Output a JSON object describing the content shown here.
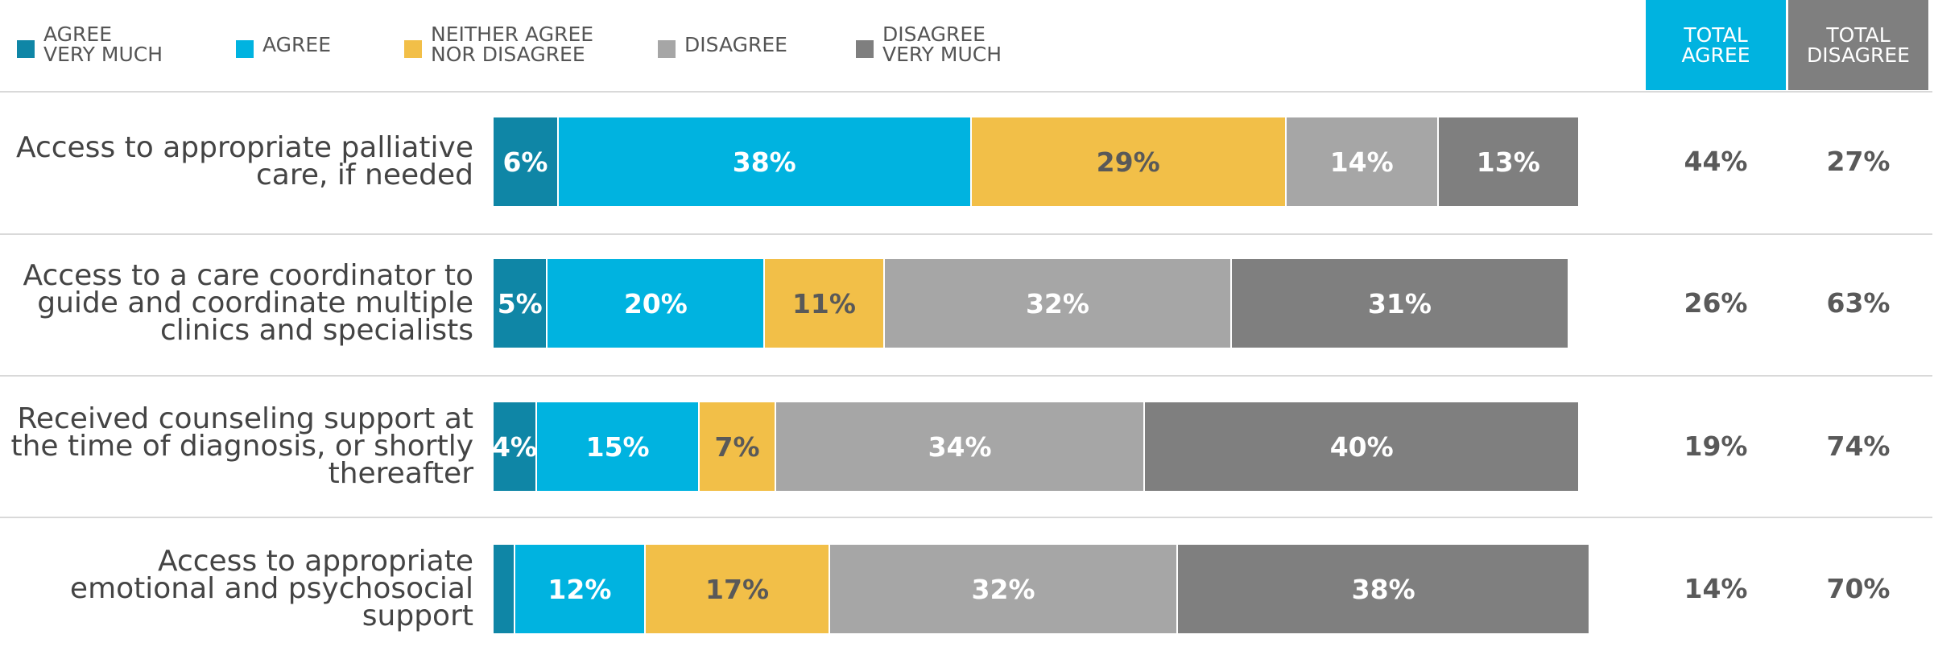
{
  "chart_data": {
    "type": "stacked-bar",
    "orientation": "horizontal",
    "categories": [
      "Access to appropriate palliative\ncare, if needed",
      "Access to a care coordinator to\nguide and coordinate multiple\nclinics and specialists",
      "Received counseling support at\nthe time of diagnosis, or shortly\nthereafter",
      "Access to appropriate\nemotional and psychosocial\nsupport"
    ],
    "xlim": [
      0,
      100
    ],
    "series": [
      {
        "name": "AGREE\nVERY MUCH",
        "color": "#0f86a6",
        "label_color": "#ffffff",
        "values": [
          6,
          5,
          4,
          2
        ],
        "value_labels": [
          "6%",
          "5%",
          "4%",
          null
        ]
      },
      {
        "name": "AGREE",
        "color": "#00b3e0",
        "label_color": "#ffffff",
        "values": [
          38,
          20,
          15,
          12
        ],
        "value_labels": [
          "38%",
          "20%",
          "15%",
          "12%"
        ]
      },
      {
        "name": "NEITHER AGREE\nNOR DISAGREE",
        "color": "#f2bf48",
        "label_color": "#595959",
        "values": [
          29,
          11,
          7,
          17
        ],
        "value_labels": [
          "29%",
          "11%",
          "7%",
          "17%"
        ]
      },
      {
        "name": "DISAGREE",
        "color": "#a6a6a6",
        "label_color": "#ffffff",
        "values": [
          14,
          32,
          34,
          32
        ],
        "value_labels": [
          "14%",
          "32%",
          "34%",
          "32%"
        ]
      },
      {
        "name": "DISAGREE\nVERY MUCH",
        "color": "#7f7f7f",
        "label_color": "#ffffff",
        "values": [
          13,
          31,
          40,
          38
        ],
        "value_labels": [
          "13%",
          "31%",
          "40%",
          "38%"
        ]
      }
    ],
    "totals": [
      {
        "name": "TOTAL\nAGREE",
        "color": "#00b3e0",
        "labels": [
          "44%",
          "26%",
          "19%",
          "14%"
        ]
      },
      {
        "name": "TOTAL\nDISAGREE",
        "color": "#7f7f7f",
        "labels": [
          "27%",
          "63%",
          "74%",
          "70%"
        ]
      }
    ]
  }
}
